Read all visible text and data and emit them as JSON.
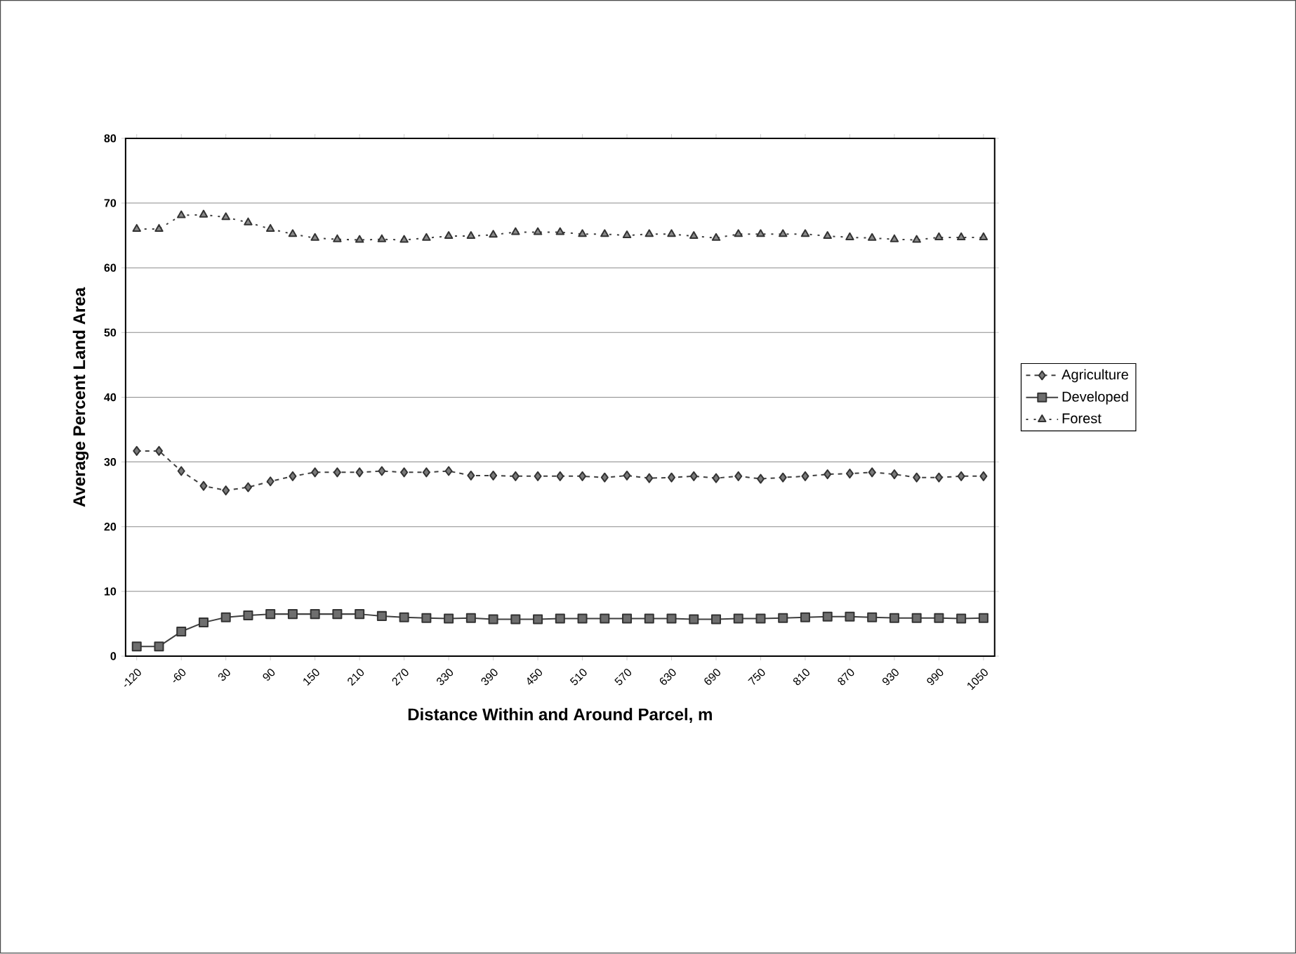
{
  "chart_data": {
    "type": "line",
    "xlabel": "Distance Within and Around Parcel, m",
    "ylabel": "Average Percent Land Area",
    "categories": [
      "-120",
      null,
      "-60",
      null,
      "30",
      null,
      "90",
      null,
      "150",
      null,
      "210",
      null,
      "270",
      null,
      "330",
      null,
      "390",
      null,
      "450",
      null,
      "510",
      null,
      "570",
      null,
      "630",
      null,
      "690",
      null,
      "750",
      null,
      "810",
      null,
      "870",
      null,
      "930",
      null,
      "990",
      null,
      "1050"
    ],
    "series": [
      {
        "name": "Agriculture",
        "color": "#7a7a7a",
        "marker": "diamond",
        "line_style": "dashed",
        "values": [
          31.7,
          31.7,
          28.6,
          26.3,
          25.6,
          26.1,
          27.0,
          27.8,
          28.4,
          28.4,
          28.4,
          28.6,
          28.4,
          28.4,
          28.6,
          27.9,
          27.9,
          27.8,
          27.8,
          27.8,
          27.8,
          27.6,
          27.9,
          27.5,
          27.6,
          27.8,
          27.5,
          27.8,
          27.4,
          27.6,
          27.8,
          28.1,
          28.2,
          28.4,
          28.1,
          27.6,
          27.6,
          27.8,
          27.8
        ]
      },
      {
        "name": "Developed",
        "color": "#6e6e6e",
        "marker": "square",
        "line_style": "solid",
        "values": [
          1.5,
          1.5,
          3.8,
          5.2,
          6.0,
          6.3,
          6.5,
          6.5,
          6.5,
          6.5,
          6.5,
          6.2,
          6.0,
          5.9,
          5.8,
          5.9,
          5.7,
          5.7,
          5.7,
          5.8,
          5.8,
          5.8,
          5.8,
          5.8,
          5.8,
          5.7,
          5.7,
          5.8,
          5.8,
          5.9,
          6.0,
          6.1,
          6.1,
          6.0,
          5.9,
          5.9,
          5.9,
          5.8,
          5.9
        ]
      },
      {
        "name": "Forest",
        "color": "#8a8a8a",
        "marker": "triangle",
        "line_style": "dotted",
        "values": [
          66.0,
          66.0,
          68.1,
          68.2,
          67.8,
          67.0,
          66.0,
          65.2,
          64.6,
          64.4,
          64.3,
          64.4,
          64.3,
          64.6,
          64.9,
          64.9,
          65.1,
          65.5,
          65.5,
          65.5,
          65.2,
          65.2,
          65.0,
          65.2,
          65.2,
          64.9,
          64.6,
          65.2,
          65.2,
          65.2,
          65.2,
          64.9,
          64.7,
          64.6,
          64.4,
          64.3,
          64.7,
          64.7,
          64.7
        ]
      }
    ],
    "ylim": [
      0,
      80
    ],
    "yticks": [
      0,
      10,
      20,
      30,
      40,
      50,
      60,
      70,
      80
    ],
    "grid": "y",
    "legend": "right"
  }
}
